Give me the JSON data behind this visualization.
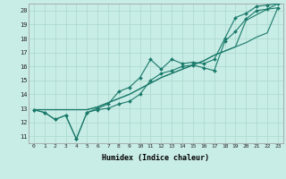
{
  "xlabel": "Humidex (Indice chaleur)",
  "xlim": [
    -0.5,
    23.5
  ],
  "ylim": [
    10.5,
    20.5
  ],
  "xticks": [
    0,
    1,
    2,
    3,
    4,
    5,
    6,
    7,
    8,
    9,
    10,
    11,
    12,
    13,
    14,
    15,
    16,
    17,
    18,
    19,
    20,
    21,
    22,
    23
  ],
  "yticks": [
    11,
    12,
    13,
    14,
    15,
    16,
    17,
    18,
    19,
    20
  ],
  "bg_color": "#c8ece6",
  "grid_color": "#aad8cc",
  "line_color": "#1a7a6a",
  "marker_color": "#1a7a6a",
  "series_with_markers": [
    [
      12.9,
      12.7,
      12.2,
      12.5,
      10.8,
      12.7,
      12.9,
      13.0,
      13.3,
      13.5,
      14.0,
      15.0,
      15.5,
      15.7,
      16.0,
      16.1,
      15.9,
      15.7,
      17.8,
      18.5,
      19.4,
      20.0,
      20.1,
      20.2
    ],
    [
      12.9,
      12.7,
      12.2,
      12.5,
      10.8,
      12.7,
      13.0,
      13.3,
      14.2,
      14.5,
      15.2,
      16.5,
      15.8,
      16.5,
      16.2,
      16.3,
      16.2,
      16.5,
      18.0,
      19.5,
      19.8,
      20.3,
      20.4,
      20.5
    ]
  ],
  "series_lines": [
    [
      12.9,
      12.9,
      12.9,
      12.9,
      12.9,
      12.9,
      13.1,
      13.4,
      13.7,
      14.0,
      14.4,
      14.8,
      15.2,
      15.5,
      15.8,
      16.1,
      16.4,
      16.8,
      17.1,
      17.4,
      17.7,
      18.1,
      18.4,
      20.2
    ],
    [
      12.9,
      12.9,
      12.9,
      12.9,
      12.9,
      12.9,
      13.1,
      13.4,
      13.7,
      14.0,
      14.4,
      14.8,
      15.2,
      15.5,
      15.8,
      16.1,
      16.4,
      16.8,
      17.1,
      17.4,
      19.3,
      19.7,
      20.1,
      20.5
    ]
  ]
}
